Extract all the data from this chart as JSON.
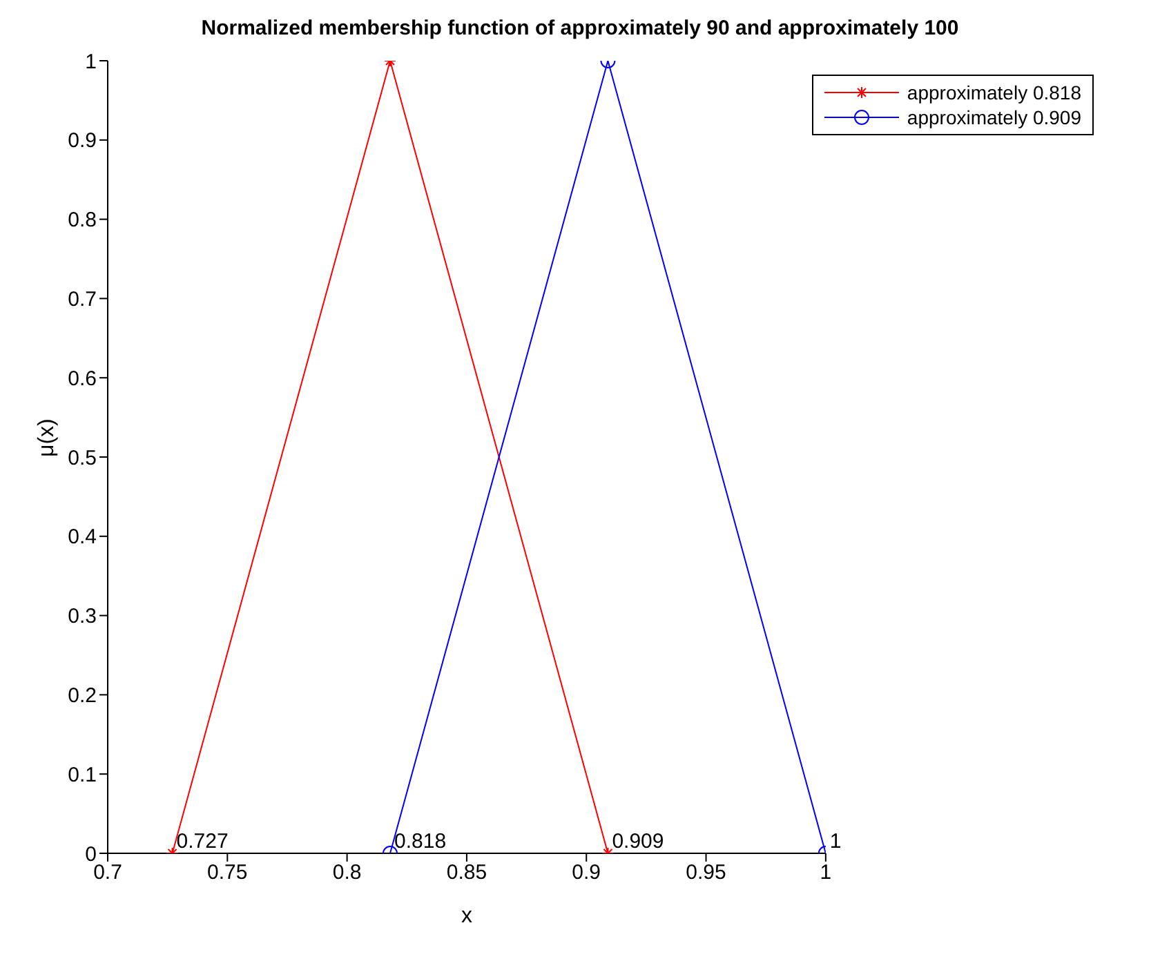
{
  "chart_data": {
    "type": "line",
    "title": "Normalized membership function of approximately 90 and approximately 100",
    "xlabel": "x",
    "ylabel": "μ(x)",
    "xlim": [
      0.7,
      1
    ],
    "xticks": [
      0.7,
      0.75,
      0.8,
      0.85,
      0.9,
      0.95,
      1
    ],
    "ylim": [
      0,
      1
    ],
    "yticks": [
      0,
      0.1,
      0.2,
      0.3,
      0.4,
      0.5,
      0.6,
      0.7,
      0.8,
      0.9,
      1
    ],
    "grid": false,
    "legend": "top right",
    "line_style": "solid",
    "series": [
      {
        "name": "approximately 0.818",
        "color": "#ff0000",
        "marker": "cross",
        "x": [
          0.727,
          0.818,
          0.909
        ],
        "values": [
          0,
          1,
          0
        ]
      },
      {
        "name": "approximately 0.909",
        "color": "#0000ff",
        "marker": "circle",
        "x": [
          0.818,
          0.909,
          1
        ],
        "values": [
          0,
          1,
          0
        ]
      }
    ],
    "annotations": [
      {
        "text": "0.727",
        "x": 0.727,
        "y": 0
      },
      {
        "text": "0.818",
        "x": 0.818,
        "y": 0
      },
      {
        "text": "0.909",
        "x": 0.909,
        "y": 0
      },
      {
        "text": "1",
        "x": 1,
        "y": 0
      }
    ]
  }
}
